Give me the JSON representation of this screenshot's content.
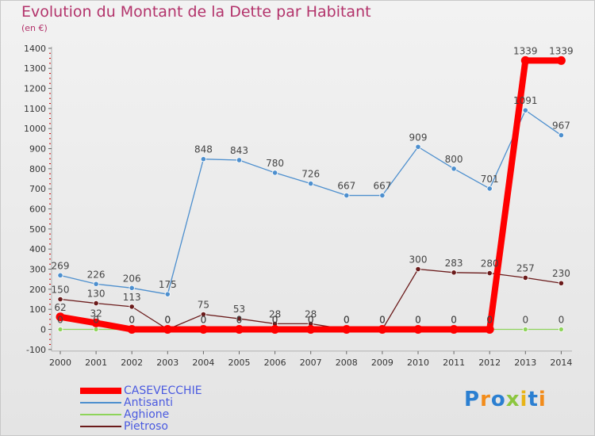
{
  "header": {
    "title": "Evolution du Montant de la Dette par Habitant",
    "subtitle": "(en €)"
  },
  "chart_data": {
    "type": "line",
    "title": "Evolution du Montant de la Dette par Habitant",
    "subtitle": "(en €)",
    "xlabel": "",
    "ylabel": "",
    "x": [
      2000,
      2001,
      2002,
      2003,
      2004,
      2005,
      2006,
      2007,
      2008,
      2009,
      2010,
      2011,
      2012,
      2013,
      2014
    ],
    "ylim": [
      -100,
      1400
    ],
    "yticks": [
      -100,
      0,
      100,
      200,
      300,
      400,
      500,
      600,
      700,
      800,
      900,
      1000,
      1100,
      1200,
      1300,
      1400
    ],
    "grid": false,
    "legend_position": "bottom-left",
    "series": [
      {
        "name": "Antisanti",
        "color": "#4d8fce",
        "values": [
          269,
          226,
          206,
          175,
          848,
          843,
          780,
          726,
          667,
          667,
          909,
          800,
          701,
          1091,
          967
        ]
      },
      {
        "name": "Pietroso",
        "color": "#6b1b1b",
        "values": [
          150,
          130,
          113,
          0,
          75,
          53,
          28,
          28,
          0,
          0,
          300,
          283,
          280,
          257,
          230
        ]
      },
      {
        "name": "Aghione",
        "color": "#8ed45a",
        "values": [
          0,
          0,
          0,
          0,
          0,
          0,
          0,
          0,
          0,
          0,
          0,
          0,
          0,
          0,
          0
        ]
      },
      {
        "name": "CASEVECCHIE",
        "color": "#ff0000",
        "values": [
          62,
          32,
          0,
          0,
          0,
          0,
          0,
          0,
          0,
          0,
          0,
          0,
          0,
          1339,
          1339
        ]
      }
    ]
  },
  "legend": [
    {
      "name": "CASEVECCHIE",
      "color": "#ff0000"
    },
    {
      "name": "Antisanti",
      "color": "#4d8fce"
    },
    {
      "name": "Aghione",
      "color": "#8ed45a"
    },
    {
      "name": "Pietroso",
      "color": "#6b1b1b"
    }
  ],
  "logo": {
    "text": "Proxiti",
    "letters": [
      {
        "ch": "P",
        "color": "#2b7fd1"
      },
      {
        "ch": "r",
        "color": "#f28c1b"
      },
      {
        "ch": "o",
        "color": "#2b7fd1"
      },
      {
        "ch": "x",
        "color": "#8cc63f"
      },
      {
        "ch": "i",
        "color": "#e8b417"
      },
      {
        "ch": "t",
        "color": "#2b7fd1"
      },
      {
        "ch": "i",
        "color": "#f28c1b"
      }
    ]
  }
}
